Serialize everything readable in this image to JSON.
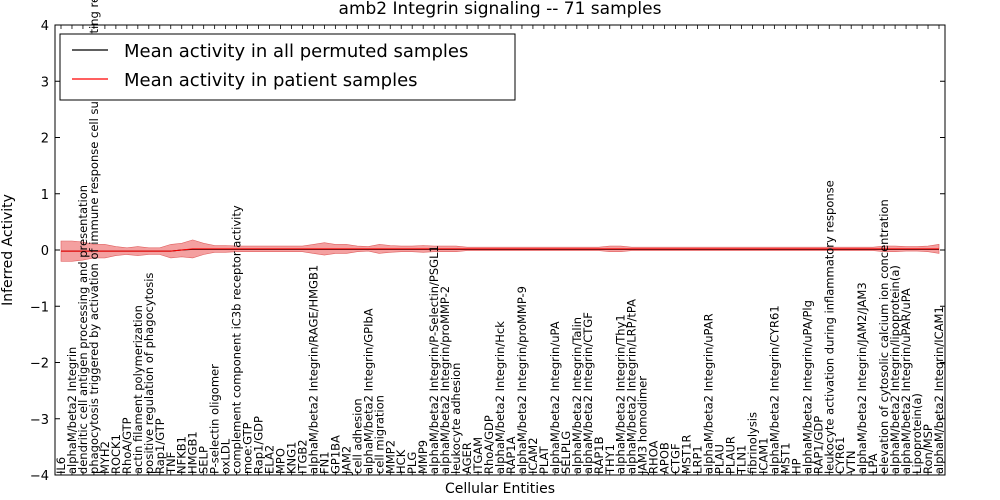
{
  "chart_data": {
    "type": "line",
    "title": "amb2 Integrin signaling -- 71 samples",
    "xlabel": "Cellular Entities",
    "ylabel": "Inferred Activity",
    "ylim": [
      -4,
      4
    ],
    "yticks": [
      -4,
      -3,
      -2,
      -1,
      0,
      1,
      2,
      3,
      4
    ],
    "grid": false,
    "legend_position": "top-left",
    "colors": {
      "permuted": "#000000",
      "patient": "#ff0000",
      "patient_band": "#f08080"
    },
    "categories": [
      "IL6",
      "alphaM/beta2 Integrin",
      "dendritic cell antigen processing and presentation",
      "phagocytosis triggered by activation of immune response cell surface activating receptor",
      "MYH2",
      "ROCK1",
      "RhoA/GTP",
      "actin filament polymerization",
      "positive regulation of phagocytosis",
      "Rap1/GTP",
      "TNF",
      "NFKB1",
      "HMGB1",
      "SELP",
      "P-selectin oligomer",
      "oxLDL",
      "complement component iC3b receptor activity",
      "moe:GTP",
      "Rap1/GDP",
      "ELA2",
      "MPO",
      "KNG1",
      "ITGB2",
      "alphaM/beta2 Integrin/RAGE/HMGB1",
      "FN1",
      "GP1BA",
      "JAM2",
      "cell adhesion",
      "alphaM/beta2 Integrin/GPIbA",
      "cell migration",
      "MMP2",
      "HCK",
      "PLG",
      "MMP9",
      "alphaM/beta2 Integrin/P-Selectin/PSGL1",
      "alphaM/beta2 Integrin/proMMP-2",
      "leukocyte adhesion",
      "AGER",
      "ITGAM",
      "RhoA/GDP",
      "alphaM/beta2 Integrin/Hck",
      "RAP1A",
      "alphaM/beta2 Integrin/proMMP-9",
      "ICAM2",
      "PLAT",
      "alphaM/beta2 Integrin/uPA",
      "SELPLG",
      "alphaM/beta2 Integrin/Talin",
      "alphaM/beta2 Integrin/CTGF",
      "RAP1B",
      "THY1",
      "alphaM/beta2 Integrin/Thy1",
      "alphaM/beta2 Integrin/LRP/tPA",
      "JAM3 homodimer",
      "RHOA",
      "APOB",
      "CTGF",
      "MST1R",
      "LRP1",
      "alphaM/beta2 Integrin/uPAR",
      "PLAU",
      "PLAUR",
      "TLN1",
      "fibrinolysis",
      "ICAM1",
      "alphaM/beta2 Integrin/CYR61",
      "MST1",
      "HP",
      "alphaM/beta2 Integrin/uPA/Plg",
      "RAP1/GDP",
      "leukocyte activation during inflammatory response",
      "CYR61",
      "VTN",
      "alphaM/beta2 Integrin/JAM2/JAM3",
      "LPA",
      "elevation of cytosolic calcium ion concentration",
      "alphaM/beta2 Integrin/lipoprotein(a)",
      "alphaM/beta2 Integrin/uPAR/uPA",
      "Lipoprotein(a)",
      "Ron/MSP",
      "alphaM/beta2 Integrin/ICAM1"
    ],
    "series": [
      {
        "name": "Mean activity in all permuted samples",
        "values": [
          -0.02,
          -0.02,
          -0.02,
          -0.02,
          -0.02,
          -0.02,
          -0.02,
          -0.02,
          -0.02,
          -0.02,
          -0.02,
          0.0,
          0.01,
          0.01,
          0.01,
          0.01,
          0.01,
          0.01,
          0.01,
          0.01,
          0.01,
          0.01,
          0.01,
          0.01,
          0.01,
          0.01,
          0.01,
          0.01,
          0.01,
          0.01,
          0.01,
          0.01,
          0.01,
          0.01,
          0.01,
          0.01,
          0.01,
          0.01,
          0.01,
          0.01,
          0.01,
          0.01,
          0.01,
          0.01,
          0.01,
          0.01,
          0.01,
          0.01,
          0.01,
          0.01,
          0.01,
          0.01,
          0.01,
          0.01,
          0.01,
          0.01,
          0.01,
          0.01,
          0.01,
          0.01,
          0.01,
          0.01,
          0.01,
          0.01,
          0.01,
          0.01,
          0.01,
          0.01,
          0.01,
          0.01,
          0.01,
          0.01,
          0.01,
          0.01,
          0.01,
          0.01,
          0.01,
          0.01,
          0.01,
          0.01,
          0.01
        ]
      },
      {
        "name": "Mean activity in patient samples",
        "values": [
          -0.02,
          -0.02,
          -0.02,
          -0.02,
          -0.02,
          -0.02,
          -0.02,
          -0.02,
          -0.02,
          -0.02,
          -0.02,
          0.0,
          0.02,
          0.02,
          0.02,
          0.02,
          0.02,
          0.02,
          0.02,
          0.02,
          0.02,
          0.02,
          0.02,
          0.02,
          0.02,
          0.02,
          0.02,
          0.02,
          0.02,
          0.02,
          0.02,
          0.02,
          0.02,
          0.02,
          0.02,
          0.02,
          0.02,
          0.02,
          0.02,
          0.02,
          0.02,
          0.02,
          0.02,
          0.02,
          0.02,
          0.02,
          0.02,
          0.02,
          0.02,
          0.02,
          0.02,
          0.02,
          0.02,
          0.02,
          0.02,
          0.02,
          0.02,
          0.02,
          0.02,
          0.02,
          0.02,
          0.02,
          0.02,
          0.02,
          0.02,
          0.02,
          0.02,
          0.02,
          0.02,
          0.02,
          0.02,
          0.02,
          0.02,
          0.02,
          0.02,
          0.02,
          0.02,
          0.02,
          0.02,
          0.02,
          0.02
        ]
      }
    ],
    "band_half_width": [
      0.18,
      0.18,
      0.16,
      0.12,
      0.12,
      0.08,
      0.06,
      0.08,
      0.06,
      0.06,
      0.12,
      0.12,
      0.16,
      0.1,
      0.06,
      0.06,
      0.05,
      0.05,
      0.05,
      0.05,
      0.05,
      0.05,
      0.05,
      0.08,
      0.11,
      0.08,
      0.08,
      0.05,
      0.04,
      0.08,
      0.06,
      0.05,
      0.05,
      0.06,
      0.05,
      0.05,
      0.05,
      0.03,
      0.03,
      0.03,
      0.03,
      0.03,
      0.03,
      0.03,
      0.03,
      0.03,
      0.03,
      0.03,
      0.03,
      0.03,
      0.05,
      0.05,
      0.03,
      0.03,
      0.03,
      0.03,
      0.03,
      0.03,
      0.03,
      0.03,
      0.03,
      0.03,
      0.03,
      0.03,
      0.03,
      0.03,
      0.03,
      0.03,
      0.03,
      0.03,
      0.03,
      0.03,
      0.03,
      0.03,
      0.03,
      0.05,
      0.05,
      0.04,
      0.04,
      0.05,
      0.08
    ]
  }
}
